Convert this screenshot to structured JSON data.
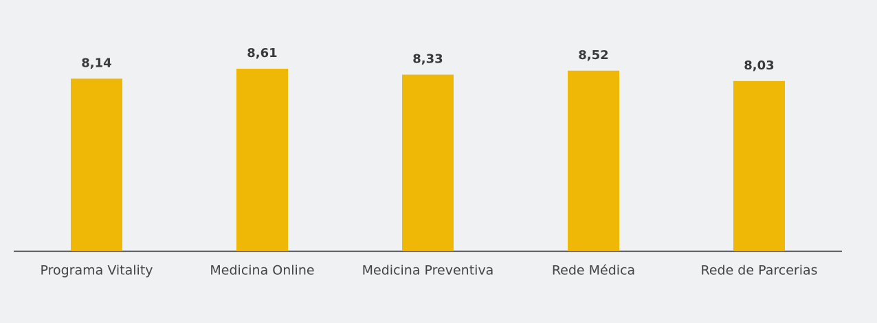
{
  "chart_data": {
    "type": "bar",
    "categories": [
      "Programa Vitality",
      "Medicina Online",
      "Medicina Preventiva",
      "Rede Médica",
      "Rede de Parcerias"
    ],
    "values": [
      8.14,
      8.61,
      8.33,
      8.52,
      8.03
    ],
    "value_labels": [
      "8,14",
      "8,61",
      "8,33",
      "8,52",
      "8,03"
    ],
    "color": "#efb706"
  }
}
